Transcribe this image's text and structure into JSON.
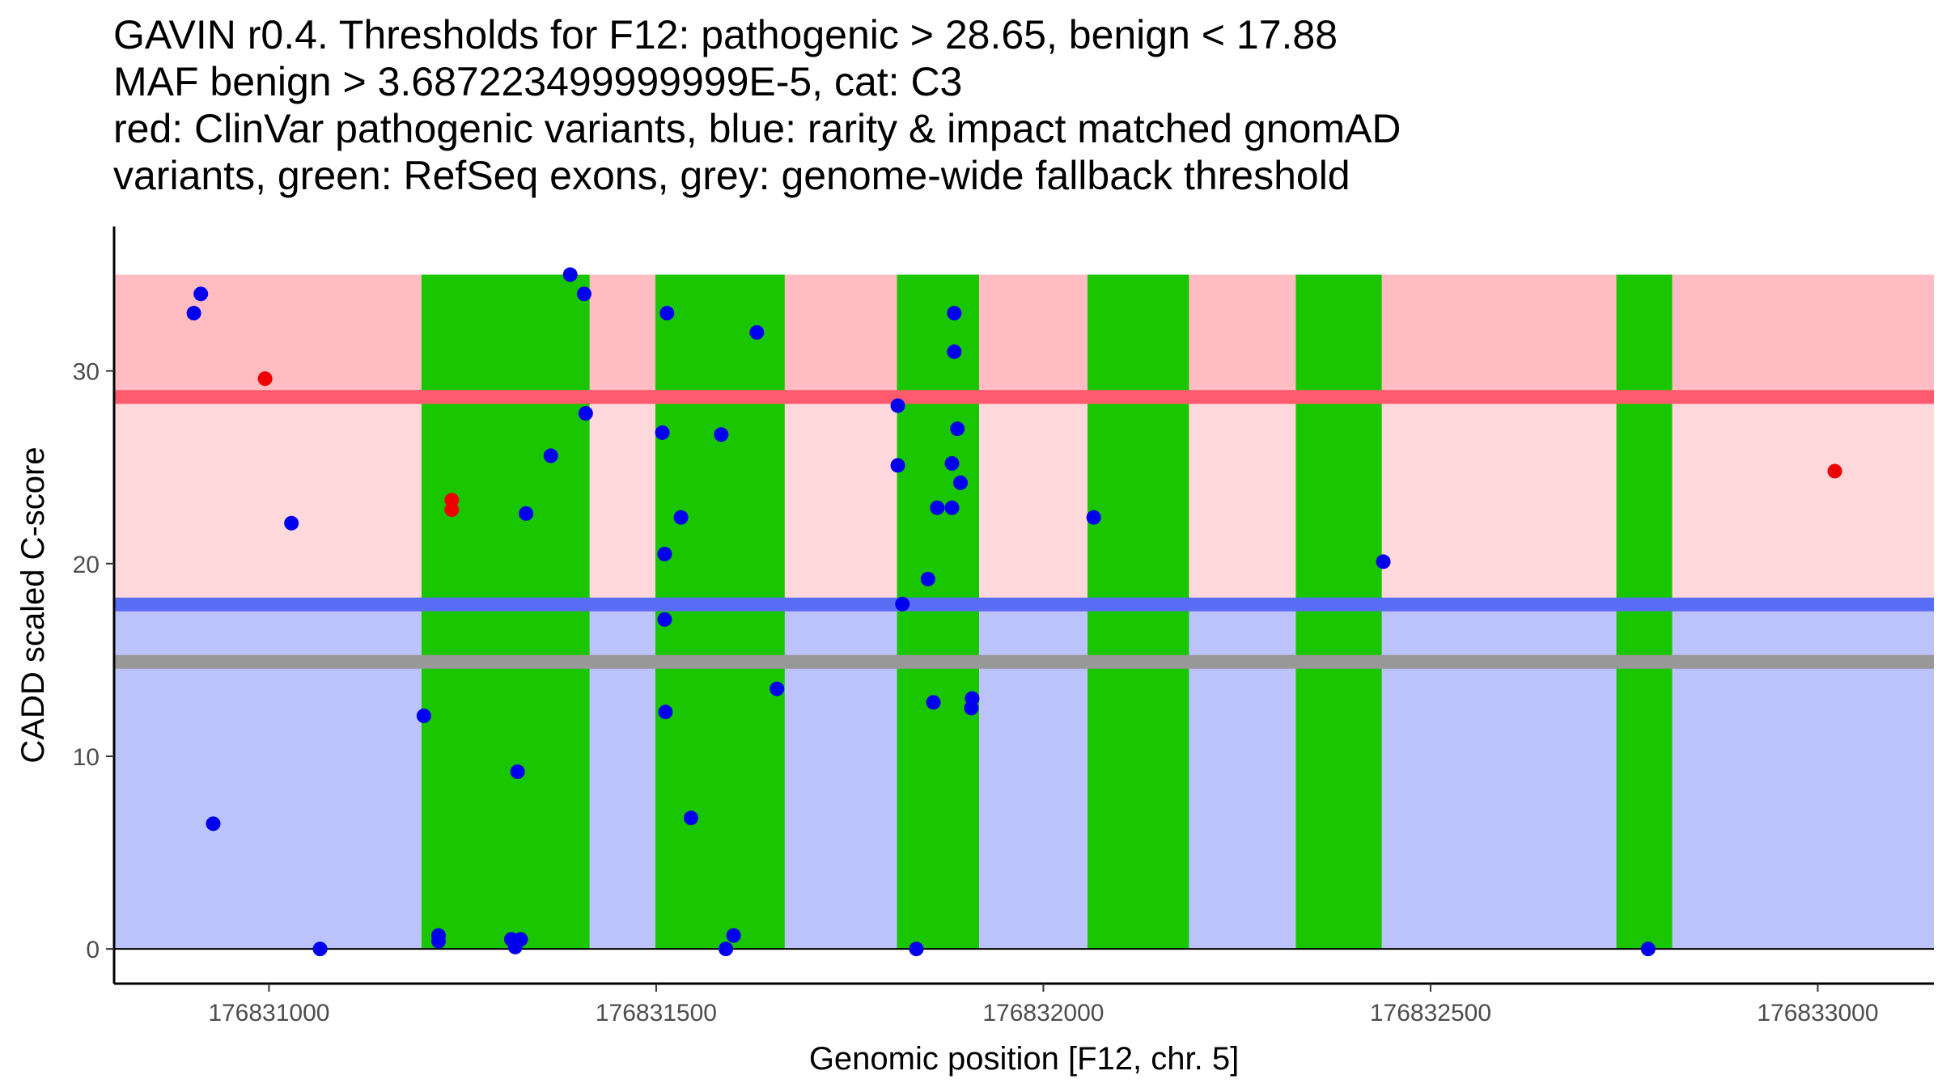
{
  "title_lines": [
    "GAVIN r0.4. Thresholds for F12: pathogenic > 28.65, benign < 17.88",
    "MAF benign > 3.687223499999999E-5, cat: C3",
    "red: ClinVar pathogenic variants, blue: rarity & impact matched gnomAD",
    "variants, green: RefSeq exons, grey: genome-wide fallback threshold"
  ],
  "colors": {
    "pathogenic_band": "#ffbcc3",
    "pathogenic_region": "#ffd8dc",
    "benign_region": "#bcc3fb",
    "pathogenic_line": "#ff5a6e",
    "benign_line": "#5a6ef5",
    "fallback_line": "#989898",
    "exon": "#1ac600",
    "clinvar_point": "#ee0000",
    "gnomad_point": "#0000ee"
  },
  "chart_data": {
    "type": "scatter",
    "xlabel": "Genomic position [F12, chr. 5]",
    "ylabel": "CADD scaled C-score",
    "xlim": [
      176830800,
      176833150
    ],
    "ylim": [
      -1.8,
      37.5
    ],
    "x_ticks": [
      176831000,
      176831500,
      176832000,
      176832500,
      176833000
    ],
    "x_tick_labels": [
      "176831000",
      "176831500",
      "176832000",
      "176832500",
      "176833000"
    ],
    "y_ticks": [
      0,
      10,
      20,
      30
    ],
    "y_tick_labels": [
      "0",
      "10",
      "20",
      "30"
    ],
    "thresholds": {
      "pathogenic": 28.65,
      "benign": 17.88,
      "genome_wide_fallback": 14.9,
      "band_top": 35
    },
    "exons": [
      {
        "start": 176831197,
        "end": 176831414
      },
      {
        "start": 176831499,
        "end": 176831666
      },
      {
        "start": 176831811,
        "end": 176831917
      },
      {
        "start": 176832057,
        "end": 176832188
      },
      {
        "start": 176832326,
        "end": 176832437
      },
      {
        "start": 176832740,
        "end": 176832812
      }
    ],
    "series": [
      {
        "name": "ClinVar pathogenic variants",
        "color": "#ee0000",
        "points": [
          [
            176830995,
            29.6
          ],
          [
            176831236,
            23.3
          ],
          [
            176831236,
            22.8
          ],
          [
            176833022,
            24.8
          ]
        ]
      },
      {
        "name": "rarity & impact matched gnomAD variants",
        "color": "#0000ee",
        "points": [
          [
            176830903,
            33.0
          ],
          [
            176830912,
            34.0
          ],
          [
            176830928,
            6.5
          ],
          [
            176831029,
            22.1
          ],
          [
            176831066,
            0.0
          ],
          [
            176831200,
            12.1
          ],
          [
            176831219,
            0.7
          ],
          [
            176831219,
            0.4
          ],
          [
            176831313,
            0.5
          ],
          [
            176831318,
            0.1
          ],
          [
            176831321,
            9.2
          ],
          [
            176831325,
            0.5
          ],
          [
            176831332,
            22.6
          ],
          [
            176831364,
            25.6
          ],
          [
            176831389,
            35.0
          ],
          [
            176831407,
            34.0
          ],
          [
            176831409,
            27.8
          ],
          [
            176831508,
            26.8
          ],
          [
            176831511,
            20.5
          ],
          [
            176831511,
            17.1
          ],
          [
            176831512,
            12.3
          ],
          [
            176831514,
            33.0
          ],
          [
            176831532,
            22.4
          ],
          [
            176831545,
            6.8
          ],
          [
            176831584,
            26.7
          ],
          [
            176831590,
            0.0
          ],
          [
            176831600,
            0.7
          ],
          [
            176831630,
            32.0
          ],
          [
            176831656,
            13.5
          ],
          [
            176831812,
            28.2
          ],
          [
            176831812,
            25.1
          ],
          [
            176831818,
            17.9
          ],
          [
            176831836,
            0.0
          ],
          [
            176831851,
            19.2
          ],
          [
            176831858,
            12.8
          ],
          [
            176831863,
            22.9
          ],
          [
            176831882,
            22.9
          ],
          [
            176831882,
            25.2
          ],
          [
            176831885,
            31.0
          ],
          [
            176831885,
            33.0
          ],
          [
            176831889,
            27.0
          ],
          [
            176831893,
            24.2
          ],
          [
            176831907,
            12.5
          ],
          [
            176831908,
            13.0
          ],
          [
            176832065,
            22.4
          ],
          [
            176832439,
            20.1
          ],
          [
            176832781,
            0.0
          ]
        ]
      }
    ]
  }
}
